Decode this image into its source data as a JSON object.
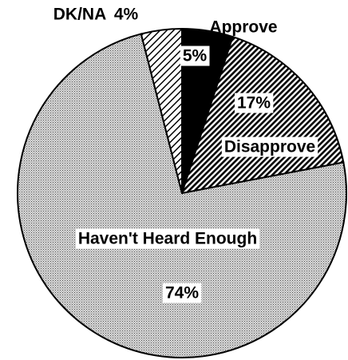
{
  "chart_data": {
    "type": "pie",
    "categories": [
      "Approve",
      "Disapprove",
      "Haven't Heard Enough",
      "DK/NA"
    ],
    "values": [
      5,
      17,
      74,
      4
    ],
    "value_labels": [
      "5%",
      "17%",
      "74%",
      "4%"
    ]
  }
}
